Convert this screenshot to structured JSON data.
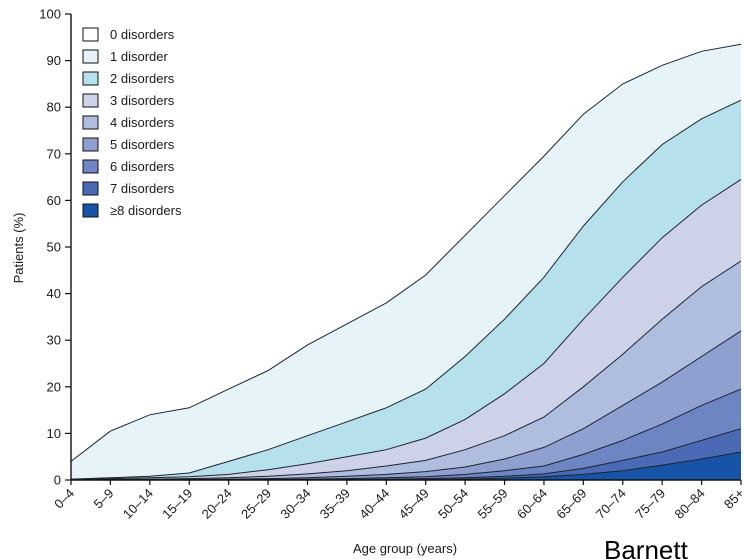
{
  "chart_data": {
    "type": "area",
    "stacked": "cumulative",
    "xlabel": "Age group (years)",
    "ylabel": "Patients (%)",
    "ylim": [
      0,
      100
    ],
    "yticks": [
      0,
      10,
      20,
      30,
      40,
      50,
      60,
      70,
      80,
      90,
      100
    ],
    "grid": false,
    "legend_position": "top-left",
    "categories": [
      "0–4",
      "5–9",
      "10–14",
      "15–19",
      "20–24",
      "25–29",
      "30–34",
      "35–39",
      "40–44",
      "45–49",
      "50–54",
      "55–59",
      "60–64",
      "65–69",
      "70–74",
      "75–79",
      "80–84",
      "85+"
    ],
    "legend": [
      "0 disorders",
      "1 disorder",
      "2 disorders",
      "3 disorders",
      "4 disorders",
      "5 disorders",
      "6 disorders",
      "7 disorders",
      "≥8 disorders"
    ],
    "fill_colors": [
      "#ffffff",
      "#e6f3f8",
      "#b6e0ec",
      "#cdd2e8",
      "#afbddf",
      "#8e9fd0",
      "#6d85c2",
      "#4a6ab5",
      "#1754a8"
    ],
    "boundary_series": [
      {
        "name": "1 disorder",
        "values": [
          4,
          10.5,
          14,
          15.5,
          19.5,
          23.5,
          29,
          33.5,
          38,
          44,
          52.5,
          61,
          69.5,
          78.5,
          85,
          89,
          92,
          93.5
        ]
      },
      {
        "name": "2 disorders",
        "values": [
          0.2,
          0.5,
          0.8,
          1.5,
          4,
          6.5,
          9.5,
          12.5,
          15.5,
          19.5,
          26.5,
          34.5,
          43.5,
          54.5,
          64,
          72,
          77.5,
          81.5
        ]
      },
      {
        "name": "3 disorders",
        "values": [
          0,
          0.3,
          0.5,
          0.7,
          1.2,
          2.2,
          3.5,
          5,
          6.5,
          9,
          13,
          18.5,
          25,
          34.5,
          43.5,
          52,
          59,
          64.5
        ]
      },
      {
        "name": "4 disorders",
        "values": [
          0,
          0.1,
          0.2,
          0.3,
          0.5,
          0.8,
          1.3,
          2,
          3,
          4.2,
          6.5,
          9.5,
          13.5,
          20,
          27,
          34.5,
          41.5,
          47
        ]
      },
      {
        "name": "5 disorders",
        "values": [
          0,
          0,
          0.1,
          0.1,
          0.2,
          0.3,
          0.5,
          0.8,
          1.2,
          1.8,
          2.8,
          4.5,
          7,
          11,
          16,
          21,
          26.5,
          32
        ]
      },
      {
        "name": "6 disorders",
        "values": [
          0,
          0,
          0,
          0,
          0,
          0.1,
          0.2,
          0.3,
          0.5,
          0.7,
          1.2,
          2,
          3,
          5.5,
          8.5,
          12,
          16,
          19.5
        ]
      },
      {
        "name": "7 disorders",
        "values": [
          0,
          0,
          0,
          0,
          0,
          0,
          0,
          0.1,
          0.2,
          0.3,
          0.5,
          0.8,
          1.3,
          2.5,
          4.2,
          6,
          8.5,
          11
        ]
      },
      {
        "name": "≥8 disorders",
        "values": [
          0,
          0,
          0,
          0,
          0,
          0,
          0,
          0,
          0.1,
          0.1,
          0.2,
          0.4,
          0.7,
          1.2,
          2,
          3.2,
          4.5,
          6
        ]
      }
    ]
  },
  "watermark_text": "Barnett"
}
